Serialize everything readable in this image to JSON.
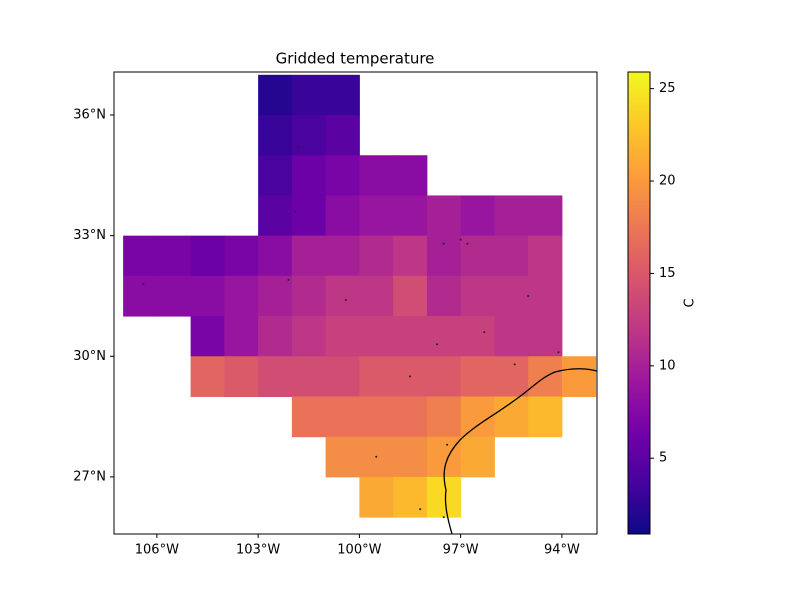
{
  "chart_data": {
    "type": "heatmap",
    "title": "Gridded temperature",
    "x": [
      -106.5,
      -105.5,
      -104.5,
      -103.5,
      -102.5,
      -101.5,
      -100.5,
      -99.5,
      -98.5,
      -97.5,
      -96.5,
      -95.5,
      -94.5,
      -93.5
    ],
    "y": [
      36.5,
      35.5,
      34.5,
      33.5,
      32.5,
      31.5,
      30.5,
      29.5,
      28.5,
      27.5,
      26.5
    ],
    "values": [
      [
        null,
        null,
        null,
        null,
        2,
        3,
        3,
        null,
        null,
        null,
        null,
        null,
        null,
        null
      ],
      [
        null,
        null,
        null,
        null,
        3,
        4,
        5,
        null,
        null,
        null,
        null,
        null,
        null,
        null
      ],
      [
        null,
        null,
        null,
        null,
        4,
        6,
        7,
        8,
        8,
        null,
        null,
        null,
        null,
        null
      ],
      [
        null,
        null,
        null,
        null,
        5,
        6,
        8,
        9,
        9,
        10,
        9,
        10,
        10,
        null
      ],
      [
        7,
        7,
        6,
        7,
        8,
        10,
        10,
        11,
        12,
        10,
        11,
        11,
        12,
        null
      ],
      [
        8,
        8,
        8,
        9,
        10,
        11,
        12,
        12,
        14,
        11,
        12,
        12,
        12,
        null
      ],
      [
        null,
        null,
        7,
        9,
        11,
        12,
        13,
        13,
        13,
        13,
        13,
        12,
        12,
        null
      ],
      [
        null,
        null,
        16,
        15,
        14,
        14,
        14,
        15,
        15,
        15,
        16,
        16,
        18,
        20
      ],
      [
        null,
        null,
        null,
        null,
        null,
        17,
        17,
        17,
        17,
        18,
        20,
        21,
        22,
        null
      ],
      [
        null,
        null,
        null,
        null,
        null,
        null,
        19,
        19,
        19,
        20,
        21,
        null,
        null,
        null
      ],
      [
        null,
        null,
        null,
        null,
        null,
        null,
        null,
        21,
        22,
        24,
        null,
        null,
        null,
        null
      ]
    ],
    "colormap": "plasma",
    "clim": [
      0.9,
      25.9
    ],
    "colorbar": {
      "label": "C",
      "ticks": [
        5,
        10,
        15,
        20,
        25
      ]
    },
    "xlim": [
      -107.27,
      -92.96
    ],
    "ylim": [
      25.58,
      37.07
    ],
    "xticks": [
      {
        "value": -106,
        "label": "106°W"
      },
      {
        "value": -103,
        "label": "103°W"
      },
      {
        "value": -100,
        "label": "100°W"
      },
      {
        "value": -97,
        "label": "97°W"
      },
      {
        "value": -94,
        "label": "94°W"
      }
    ],
    "yticks": [
      {
        "value": 27,
        "label": "27°N"
      },
      {
        "value": 30,
        "label": "30°N"
      },
      {
        "value": 33,
        "label": "33°N"
      },
      {
        "value": 36,
        "label": "36°N"
      }
    ],
    "stations": {
      "x": [
        -97.5,
        -97.0,
        -96.8,
        -98.5,
        -95.4,
        -97.7,
        -101.9,
        -106.4,
        -99.5,
        -97.4,
        -94.1,
        -100.4,
        -102.1,
        -101.8,
        -97.5,
        -98.2,
        -95.0,
        -96.3
      ],
      "y": [
        32.8,
        32.9,
        32.8,
        29.5,
        29.8,
        30.3,
        33.6,
        31.8,
        27.5,
        27.8,
        30.1,
        31.4,
        31.9,
        35.2,
        26.0,
        26.2,
        31.5,
        30.6
      ]
    }
  }
}
